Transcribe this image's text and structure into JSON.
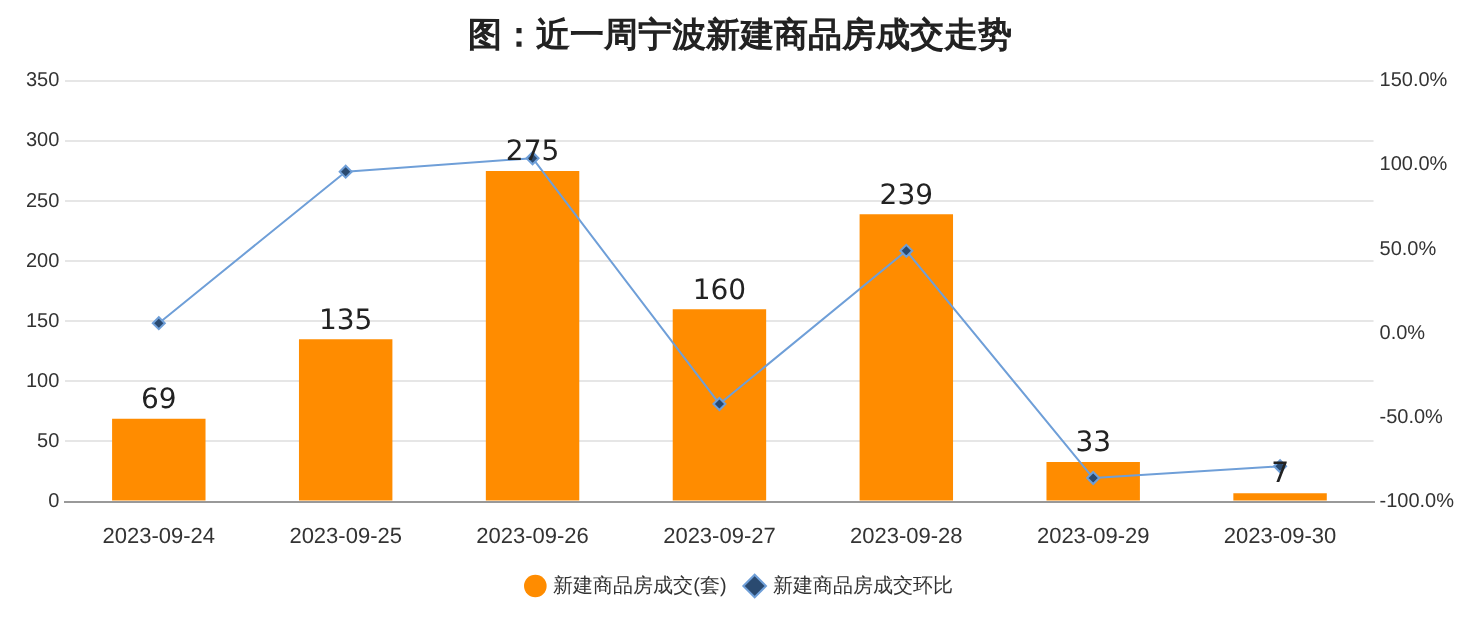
{
  "chart_data": {
    "type": "bar",
    "title": "图：近一周宁波新建商品房成交走势",
    "categories": [
      "2023-09-24",
      "2023-09-25",
      "2023-09-26",
      "2023-09-27",
      "2023-09-28",
      "2023-09-29",
      "2023-09-30"
    ],
    "series": [
      {
        "name": "新建商品房成交(套)",
        "color": "#ff8c00",
        "values": [
          69,
          135,
          275,
          160,
          239,
          33,
          7
        ],
        "value_labels": [
          "69",
          "135",
          "275",
          "160",
          "239",
          "33",
          "7"
        ]
      },
      {
        "name": "新建商品房成交环比",
        "type": "line",
        "axis": "y2",
        "color": "#6f9fd8",
        "values": [
          6,
          96,
          104,
          -42,
          49,
          -86,
          -79
        ]
      }
    ],
    "ylim": [
      0,
      350
    ],
    "yticks": [
      0,
      50,
      100,
      150,
      200,
      250,
      300,
      350
    ],
    "y2lim": [
      -100,
      150
    ],
    "y2ticks": [
      {
        "value": -100,
        "label": "-100.0%"
      },
      {
        "value": -50,
        "label": "-50.0%"
      },
      {
        "value": 0,
        "label": "0.0%"
      },
      {
        "value": 50,
        "label": "50.0%"
      },
      {
        "value": 100,
        "label": "100.0%"
      },
      {
        "value": 150,
        "label": "150.0%"
      }
    ],
    "grid": "y",
    "legend": "bottom",
    "marker": "diamond",
    "line_style": "solid"
  }
}
